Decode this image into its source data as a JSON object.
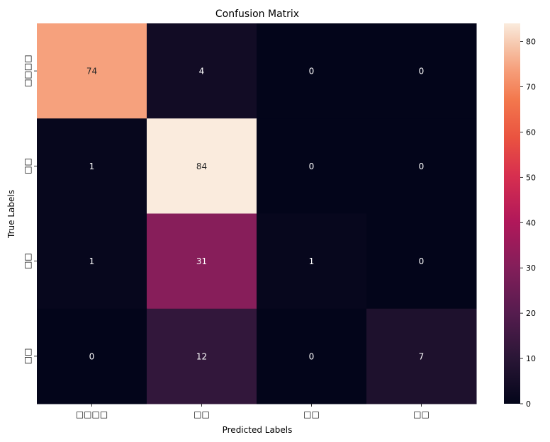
{
  "chart_data": {
    "type": "heatmap",
    "title": "Confusion Matrix",
    "xlabel": "Predicted Labels",
    "ylabel": "True Labels",
    "x_tick_labels": [
      "□□□□",
      "□□",
      "□□",
      "□□"
    ],
    "y_tick_labels": [
      "□□□□",
      "□□",
      "□□",
      "□□"
    ],
    "values": [
      [
        74,
        4,
        0,
        0
      ],
      [
        1,
        84,
        0,
        0
      ],
      [
        1,
        31,
        1,
        0
      ],
      [
        0,
        12,
        0,
        7
      ]
    ],
    "colorbar": {
      "min": 0,
      "max": 84,
      "ticks": [
        0,
        10,
        20,
        30,
        40,
        50,
        60,
        70,
        80
      ],
      "colormap": "rocket"
    },
    "annotation_colors": {
      "on_dark": "#ffffff",
      "on_light": "#262626"
    }
  }
}
